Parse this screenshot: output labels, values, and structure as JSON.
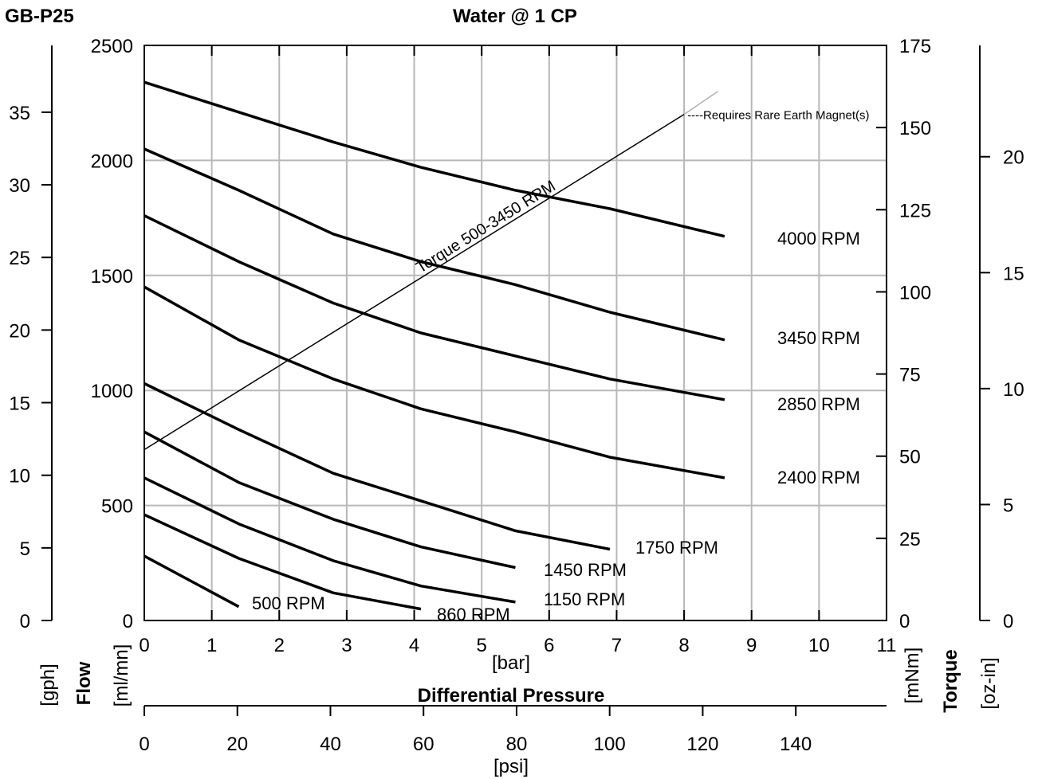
{
  "header": {
    "model": "GB-P25",
    "title": "Water @ 1 CP"
  },
  "axes": {
    "flow_gph": {
      "unit": "[gph]",
      "ticks": [
        0,
        5,
        10,
        15,
        20,
        25,
        30,
        35
      ],
      "range": [
        0,
        39.6
      ]
    },
    "flow_title": "Flow",
    "flow_mlmin": {
      "unit": "[ml/mn]",
      "ticks": [
        0,
        500,
        1000,
        1500,
        2000,
        2500
      ],
      "range": [
        0,
        2500
      ]
    },
    "pressure_bar": {
      "unit": "[bar]",
      "ticks": [
        0,
        1,
        2,
        3,
        4,
        5,
        6,
        7,
        8,
        9,
        10,
        11
      ],
      "range": [
        0,
        11
      ]
    },
    "pressure_title": "Differential Pressure",
    "pressure_psi": {
      "unit": "[psi]",
      "ticks": [
        0,
        20,
        40,
        60,
        80,
        100,
        120,
        140
      ],
      "range": [
        0,
        159.5
      ]
    },
    "torque_mnm": {
      "unit": "[mNm]",
      "ticks": [
        0,
        25,
        50,
        75,
        100,
        125,
        150,
        175
      ],
      "range": [
        0,
        175
      ]
    },
    "torque_title": "Torque",
    "torque_ozin": {
      "unit": "[oz-in]",
      "ticks": [
        0,
        5,
        10,
        15,
        20
      ],
      "range": [
        0,
        24.8
      ]
    }
  },
  "chart_data": {
    "type": "line",
    "xlabel": "[bar]",
    "ylabel": "[ml/mn]",
    "xlim": [
      0,
      11
    ],
    "ylim": [
      0,
      2500
    ],
    "grid": true,
    "series": [
      {
        "name": "4000 RPM",
        "x": [
          0,
          1.4,
          2.8,
          4.1,
          5.5,
          6.9,
          8.6
        ],
        "y": [
          2340,
          2210,
          2080,
          1970,
          1870,
          1790,
          1670
        ]
      },
      {
        "name": "3450 RPM",
        "x": [
          0,
          1.4,
          2.8,
          4.1,
          5.5,
          6.9,
          8.6
        ],
        "y": [
          2050,
          1870,
          1680,
          1560,
          1460,
          1340,
          1220
        ]
      },
      {
        "name": "2850 RPM",
        "x": [
          0,
          1.4,
          2.8,
          4.1,
          5.5,
          6.9,
          8.6
        ],
        "y": [
          1760,
          1560,
          1380,
          1250,
          1150,
          1050,
          960
        ]
      },
      {
        "name": "2400 RPM",
        "x": [
          0,
          1.4,
          2.8,
          4.1,
          5.5,
          6.9,
          8.6
        ],
        "y": [
          1450,
          1220,
          1050,
          920,
          820,
          710,
          620
        ]
      },
      {
        "name": "1750 RPM",
        "x": [
          0,
          1.4,
          2.8,
          4.1,
          5.5,
          6.9
        ],
        "y": [
          1030,
          830,
          640,
          520,
          390,
          310
        ]
      },
      {
        "name": "1450 RPM",
        "x": [
          0,
          1.4,
          2.8,
          4.1,
          5.5
        ],
        "y": [
          820,
          600,
          440,
          320,
          230
        ]
      },
      {
        "name": "1150 RPM",
        "x": [
          0,
          1.4,
          2.8,
          4.1,
          5.5
        ],
        "y": [
          620,
          420,
          260,
          150,
          80
        ]
      },
      {
        "name": "860 RPM",
        "x": [
          0,
          1.4,
          2.8,
          4.1
        ],
        "y": [
          460,
          270,
          120,
          50
        ]
      },
      {
        "name": "500 RPM",
        "x": [
          0,
          1.4
        ],
        "y": [
          280,
          60
        ]
      }
    ],
    "torque_line": {
      "label": "Torque   500-3450 RPM",
      "x": [
        0,
        8.0
      ],
      "torque_mnm": [
        52,
        154
      ]
    },
    "rare_earth_line": {
      "label": "----Requires Rare Earth Magnet(s)",
      "x": [
        8.0,
        8.5
      ],
      "torque_mnm": [
        154,
        161
      ]
    }
  }
}
